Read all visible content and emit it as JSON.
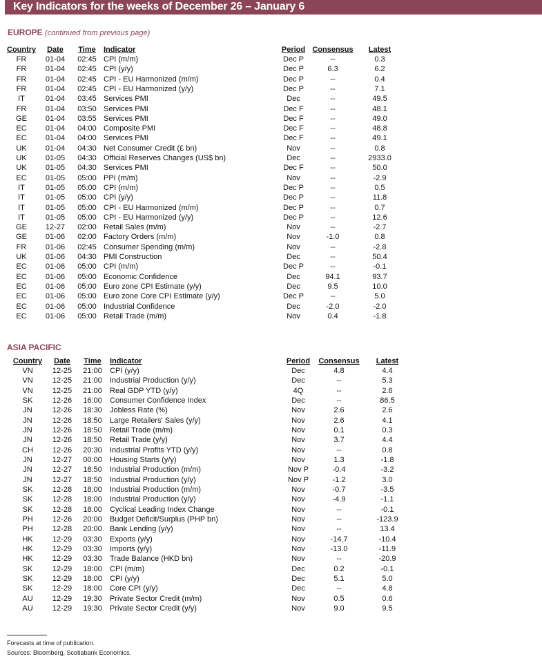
{
  "title": "Key Indicators for the weeks of December 26 – January 6",
  "columns": {
    "country": "Country",
    "date": "Date",
    "time": "Time",
    "indicator": "Indicator",
    "period": "Period",
    "consensus": "Consensus",
    "latest": "Latest"
  },
  "europe": {
    "heading": "EUROPE",
    "note": "(continued from previous page)",
    "rows": [
      [
        "FR",
        "01-04",
        "02:45",
        "CPI (m/m)",
        "Dec P",
        "--",
        "0.3"
      ],
      [
        "FR",
        "01-04",
        "02:45",
        "CPI (y/y)",
        "Dec P",
        "6.3",
        "6.2"
      ],
      [
        "FR",
        "01-04",
        "02:45",
        "CPI - EU Harmonized (m/m)",
        "Dec P",
        "--",
        "0.4"
      ],
      [
        "FR",
        "01-04",
        "02:45",
        "CPI - EU Harmonized (y/y)",
        "Dec P",
        "--",
        "7.1"
      ],
      [
        "IT",
        "01-04",
        "03:45",
        "Services PMI",
        "Dec",
        "--",
        "49.5"
      ],
      [
        "FR",
        "01-04",
        "03:50",
        "Services PMI",
        "Dec F",
        "--",
        "48.1"
      ],
      [
        "GE",
        "01-04",
        "03:55",
        "Services PMI",
        "Dec F",
        "--",
        "49.0"
      ],
      [
        "EC",
        "01-04",
        "04:00",
        "Composite PMI",
        "Dec F",
        "--",
        "48.8"
      ],
      [
        "EC",
        "01-04",
        "04:00",
        "Services PMI",
        "Dec F",
        "--",
        "49.1"
      ],
      [
        "UK",
        "01-04",
        "04:30",
        "Net Consumer Credit (£ bn)",
        "Nov",
        "--",
        "0.8"
      ],
      [
        "UK",
        "01-05",
        "04:30",
        "Official Reserves Changes (US$ bn)",
        "Dec",
        "--",
        "2933.0"
      ],
      [
        "UK",
        "01-05",
        "04:30",
        "Services PMI",
        "Dec F",
        "--",
        "50.0"
      ],
      [
        "EC",
        "01-05",
        "05:00",
        "PPI (m/m)",
        "Nov",
        "--",
        "-2.9"
      ],
      [
        "IT",
        "01-05",
        "05:00",
        "CPI (m/m)",
        "Dec P",
        "--",
        "0.5"
      ],
      [
        "IT",
        "01-05",
        "05:00",
        "CPI (y/y)",
        "Dec P",
        "--",
        "11.8"
      ],
      [
        "IT",
        "01-05",
        "05:00",
        "CPI - EU Harmonized (m/m)",
        "Dec P",
        "--",
        "0.7"
      ],
      [
        "IT",
        "01-05",
        "05:00",
        "CPI - EU Harmonized (y/y)",
        "Dec P",
        "--",
        "12.6"
      ],
      [
        "GE",
        "12-27",
        "02:00",
        "Retail Sales (m/m)",
        "Nov",
        "--",
        "-2.7"
      ],
      [
        "GE",
        "01-06",
        "02:00",
        "Factory Orders (m/m)",
        "Nov",
        "-1.0",
        "0.8"
      ],
      [
        "FR",
        "01-06",
        "02:45",
        "Consumer Spending (m/m)",
        "Nov",
        "--",
        "-2.8"
      ],
      [
        "UK",
        "01-06",
        "04:30",
        "PMI Construction",
        "Dec",
        "--",
        "50.4"
      ],
      [
        "EC",
        "01-06",
        "05:00",
        "CPI (m/m)",
        "Dec P",
        "--",
        "-0.1"
      ],
      [
        "EC",
        "01-06",
        "05:00",
        "Economic Confidence",
        "Dec",
        "94.1",
        "93.7"
      ],
      [
        "EC",
        "01-06",
        "05:00",
        "Euro zone CPI Estimate (y/y)",
        "Dec",
        "9.5",
        "10.0"
      ],
      [
        "EC",
        "01-06",
        "05:00",
        "Euro zone Core CPI Estimate (y/y)",
        "Dec P",
        "--",
        "5.0"
      ],
      [
        "EC",
        "01-06",
        "05:00",
        "Industrial Confidence",
        "Dec",
        "-2.0",
        "-2.0"
      ],
      [
        "EC",
        "01-06",
        "05:00",
        "Retail Trade (m/m)",
        "Nov",
        "0.4",
        "-1.8"
      ]
    ]
  },
  "asia": {
    "heading": "ASIA PACIFIC",
    "rows": [
      [
        "VN",
        "12-25",
        "21:00",
        "CPI (y/y)",
        "Dec",
        "4.8",
        "4.4"
      ],
      [
        "VN",
        "12-25",
        "21:00",
        "Industrial Production (y/y)",
        "Dec",
        "--",
        "5.3"
      ],
      [
        "VN",
        "12-25",
        "21:00",
        "Real GDP YTD (y/y)",
        "4Q",
        "--",
        "2.6"
      ],
      [
        "SK",
        "12-26",
        "16:00",
        "Consumer Confidence Index",
        "Dec",
        "--",
        "86.5"
      ],
      [
        "JN",
        "12-26",
        "18:30",
        "Jobless Rate (%)",
        "Nov",
        "2.6",
        "2.6"
      ],
      [
        "JN",
        "12-26",
        "18:50",
        "Large Retailers' Sales (y/y)",
        "Nov",
        "2.6",
        "4.1"
      ],
      [
        "JN",
        "12-26",
        "18:50",
        "Retail Trade (m/m)",
        "Nov",
        "0.1",
        "0.3"
      ],
      [
        "JN",
        "12-26",
        "18:50",
        "Retail Trade (y/y)",
        "Nov",
        "3.7",
        "4.4"
      ],
      [
        "CH",
        "12-26",
        "20:30",
        "Industrial Profits YTD (y/y)",
        "Nov",
        "--",
        "0.8"
      ],
      [
        "JN",
        "12-27",
        "00:00",
        "Housing Starts (y/y)",
        "Nov",
        "1.3",
        "-1.8"
      ],
      [
        "JN",
        "12-27",
        "18:50",
        "Industrial Production (m/m)",
        "Nov P",
        "-0.4",
        "-3.2"
      ],
      [
        "JN",
        "12-27",
        "18:50",
        "Industrial Production (y/y)",
        "Nov P",
        "-1.2",
        "3.0"
      ],
      [
        "SK",
        "12-28",
        "18:00",
        "Industrial Production (m/m)",
        "Nov",
        "-0.7",
        "-3.5"
      ],
      [
        "SK",
        "12-28",
        "18:00",
        "Industrial Production (y/y)",
        "Nov",
        "-4.9",
        "-1.1"
      ],
      [
        "SK",
        "12-28",
        "18:00",
        "Cyclical Leading Index Change",
        "Nov",
        "--",
        "-0.1"
      ],
      [
        "PH",
        "12-26",
        "20:00",
        "Budget Deficit/Surplus (PHP bn)",
        "Nov",
        "--",
        "-123.9"
      ],
      [
        "PH",
        "12-28",
        "20:00",
        "Bank Lending (y/y)",
        "Nov",
        "--",
        "13.4"
      ],
      [
        "HK",
        "12-29",
        "03:30",
        "Exports (y/y)",
        "Nov",
        "-14.7",
        "-10.4"
      ],
      [
        "HK",
        "12-29",
        "03:30",
        "Imports (y/y)",
        "Nov",
        "-13.0",
        "-11.9"
      ],
      [
        "HK",
        "12-29",
        "03:30",
        "Trade Balance (HKD bn)",
        "Nov",
        "--",
        "-20.9"
      ],
      [
        "SK",
        "12-29",
        "18:00",
        "CPI (m/m)",
        "Dec",
        "0.2",
        "-0.1"
      ],
      [
        "SK",
        "12-29",
        "18:00",
        "CPI (y/y)",
        "Dec",
        "5.1",
        "5.0"
      ],
      [
        "SK",
        "12-29",
        "18:00",
        "Core CPI (y/y)",
        "Dec",
        "--",
        "4.8"
      ],
      [
        "AU",
        "12-29",
        "19:30",
        "Private Sector Credit (m/m)",
        "Nov",
        "0.5",
        "0.6"
      ],
      [
        "AU",
        "12-29",
        "19:30",
        "Private Sector Credit (y/y)",
        "Nov",
        "9.0",
        "9.5"
      ]
    ]
  },
  "footer": {
    "note": "Forecasts at time of publication.",
    "sources": "Sources: Bloomberg, Scotiabank Economics."
  },
  "colors": {
    "accent": "#8b4558"
  }
}
